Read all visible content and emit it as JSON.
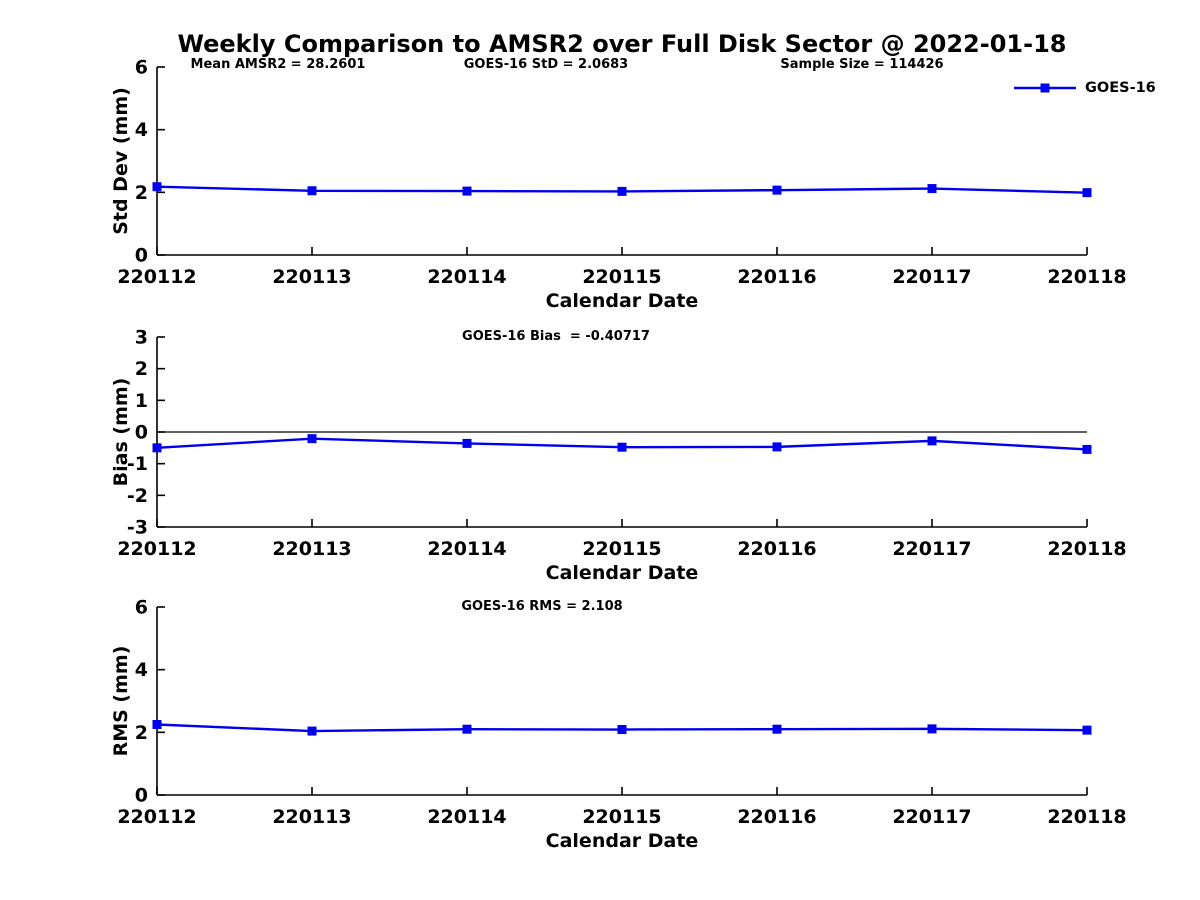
{
  "figure": {
    "title": "Weekly Comparison to AMSR2 over Full Disk Sector @ 2022-01-18"
  },
  "colors": {
    "line": "#0000EE",
    "axis": "#000000",
    "text": "#000000"
  },
  "legend": {
    "label": "GOES-16"
  },
  "chart_data": [
    {
      "type": "line",
      "name": "std-dev",
      "title": "",
      "categories": [
        "220112",
        "220113",
        "220114",
        "220115",
        "220116",
        "220117",
        "220118"
      ],
      "series": [
        {
          "name": "GOES-16",
          "values": [
            2.18,
            2.05,
            2.04,
            2.03,
            2.07,
            2.12,
            1.99
          ]
        }
      ],
      "xlabel": "Calendar Date",
      "ylabel": "Std Dev (mm)",
      "ylim": [
        0,
        6
      ],
      "yticks": [
        0,
        2,
        4,
        6
      ],
      "grid": false,
      "legend_position": "top-right",
      "annotations": [
        {
          "text": "Mean AMSR2 = 28.2601"
        },
        {
          "text": "GOES-16 StD = 2.0683"
        },
        {
          "text": "Sample Size = 114426"
        }
      ]
    },
    {
      "type": "line",
      "name": "bias",
      "title": "",
      "categories": [
        "220112",
        "220113",
        "220114",
        "220115",
        "220116",
        "220117",
        "220118"
      ],
      "series": [
        {
          "name": "GOES-16",
          "values": [
            -0.5,
            -0.21,
            -0.36,
            -0.48,
            -0.47,
            -0.28,
            -0.55
          ]
        }
      ],
      "xlabel": "Calendar Date",
      "ylabel": "Bias (mm)",
      "ylim": [
        -3,
        3
      ],
      "yticks": [
        -3,
        -2,
        -1,
        0,
        1,
        2,
        3
      ],
      "zero_line": true,
      "grid": false,
      "annotations": [
        {
          "text": "GOES-16 Bias  = -0.40717"
        }
      ]
    },
    {
      "type": "line",
      "name": "rms",
      "title": "",
      "categories": [
        "220112",
        "220113",
        "220114",
        "220115",
        "220116",
        "220117",
        "220118"
      ],
      "series": [
        {
          "name": "GOES-16",
          "values": [
            2.25,
            2.04,
            2.1,
            2.09,
            2.1,
            2.11,
            2.07
          ]
        }
      ],
      "xlabel": "Calendar Date",
      "ylabel": "RMS (mm)",
      "ylim": [
        0,
        6
      ],
      "yticks": [
        0,
        2,
        4,
        6
      ],
      "grid": false,
      "annotations": [
        {
          "text": "GOES-16 RMS = 2.108"
        }
      ]
    }
  ]
}
